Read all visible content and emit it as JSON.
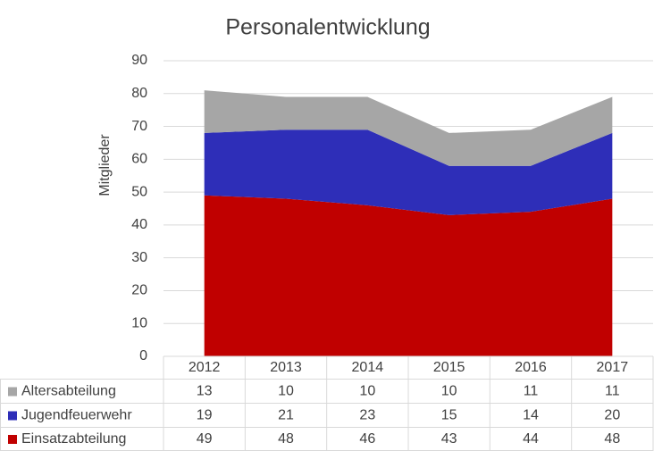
{
  "chart_data": {
    "type": "stacked_area",
    "title": "Personalentwicklung",
    "y_label": "Mitglieder",
    "categories": [
      "2012",
      "2013",
      "2014",
      "2015",
      "2016",
      "2017"
    ],
    "series": [
      {
        "name": "Altersabteilung",
        "color": "#a6a6a6",
        "values": [
          13,
          10,
          10,
          10,
          11,
          11
        ]
      },
      {
        "name": "Jugendfeuerwehr",
        "color": "#2e2eb8",
        "values": [
          19,
          21,
          23,
          15,
          14,
          20
        ]
      },
      {
        "name": "Einsatzabteilung",
        "color": "#c00000",
        "values": [
          49,
          48,
          46,
          43,
          44,
          48
        ]
      }
    ],
    "ylim": [
      0,
      90
    ],
    "yticks": [
      0,
      10,
      20,
      30,
      40,
      50,
      60,
      70,
      80,
      90
    ],
    "grid": true,
    "data_table": true
  }
}
